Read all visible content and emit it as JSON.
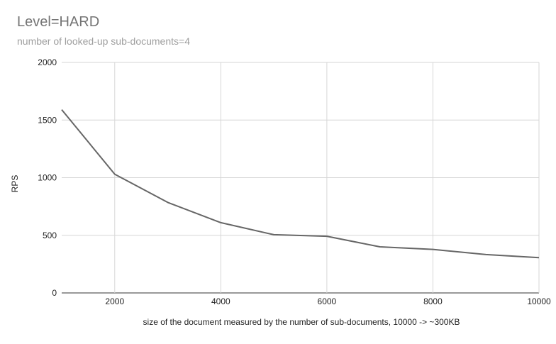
{
  "chart_data": {
    "type": "line",
    "title": "Level=HARD",
    "subtitle": "number of looked-up sub-documents=4",
    "xlabel": "size of the document measured by the number of sub-documents, 10000 -> ~300KB",
    "ylabel": "RPS",
    "xlim": [
      1000,
      10000
    ],
    "ylim": [
      0,
      2000
    ],
    "xticks": [
      2000,
      4000,
      6000,
      8000,
      10000
    ],
    "yticks": [
      0,
      500,
      1000,
      1500,
      2000
    ],
    "grid": true,
    "series": [
      {
        "color": "#666666",
        "x": [
          1000,
          2000,
          3000,
          4000,
          5000,
          6000,
          7000,
          8000,
          9000,
          10000
        ],
        "y": [
          1590,
          1030,
          785,
          610,
          505,
          492,
          400,
          378,
          333,
          306
        ]
      }
    ]
  }
}
